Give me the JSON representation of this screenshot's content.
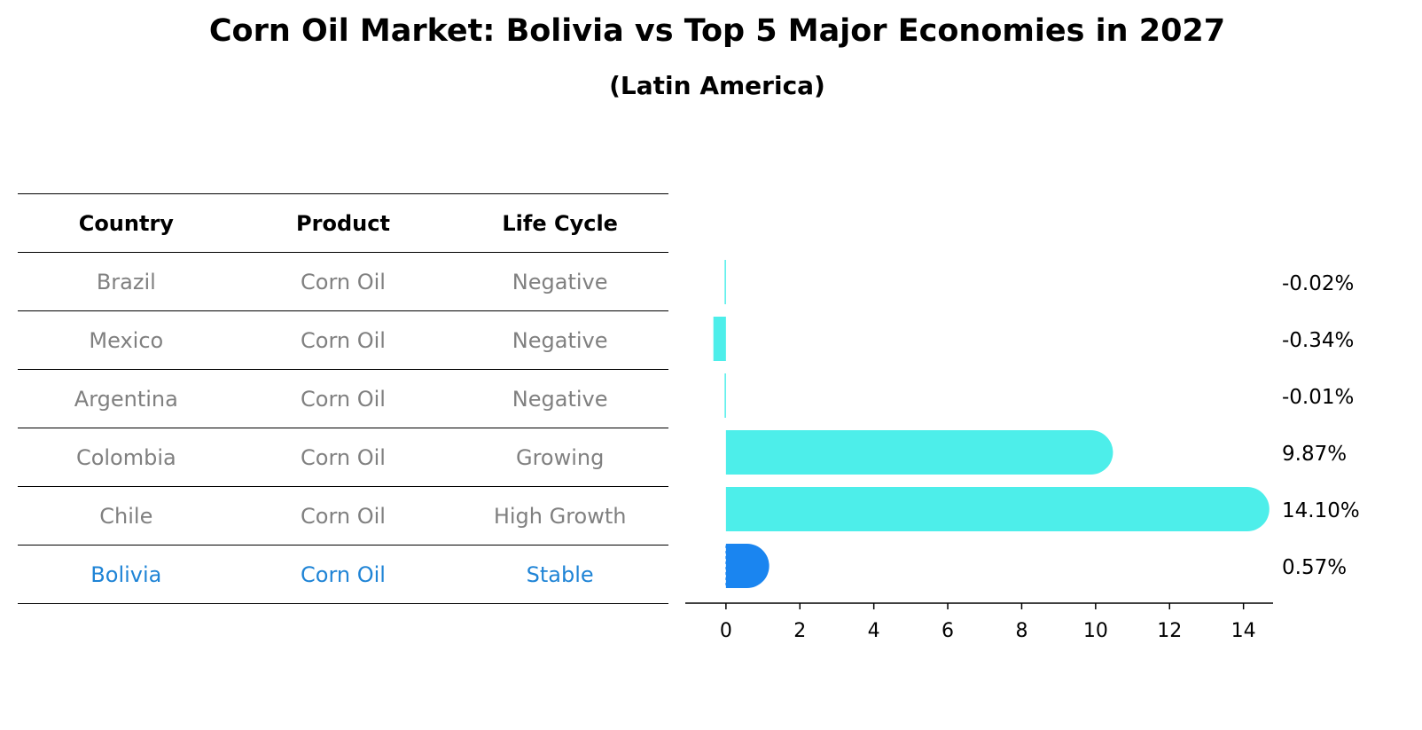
{
  "title": "Corn Oil Market: Bolivia vs Top 5 Major Economies in 2027",
  "subtitle": "(Latin America)",
  "table": {
    "headers": [
      "Country",
      "Product",
      "Life Cycle"
    ],
    "rows": [
      {
        "country": "Brazil",
        "product": "Corn Oil",
        "life_cycle": "Negative"
      },
      {
        "country": "Mexico",
        "product": "Corn Oil",
        "life_cycle": "Negative"
      },
      {
        "country": "Argentina",
        "product": "Corn Oil",
        "life_cycle": "Negative"
      },
      {
        "country": "Colombia",
        "product": "Corn Oil",
        "life_cycle": "Growing"
      },
      {
        "country": "Chile",
        "product": "Corn Oil",
        "life_cycle": "High Growth"
      },
      {
        "country": "Bolivia",
        "product": "Corn Oil",
        "life_cycle": "Stable"
      }
    ]
  },
  "chart_data": {
    "type": "bar",
    "orientation": "horizontal",
    "categories": [
      "Brazil",
      "Mexico",
      "Argentina",
      "Colombia",
      "Chile",
      "Bolivia"
    ],
    "values": [
      -0.02,
      -0.34,
      -0.01,
      9.87,
      14.1,
      0.57
    ],
    "labels": [
      "-0.02%",
      "-0.34%",
      "-0.01%",
      "9.87%",
      "14.10%",
      "0.57%"
    ],
    "highlight": "Bolivia",
    "xticks": [
      0,
      2,
      4,
      6,
      8,
      10,
      12,
      14
    ],
    "xlim": [
      -1.1,
      14.8
    ],
    "grid": false,
    "colors": {
      "bar": "#4deeea",
      "highlight": "#1a85f0",
      "highlight_text": "#1f84d6",
      "muted_text": "#808080"
    }
  }
}
